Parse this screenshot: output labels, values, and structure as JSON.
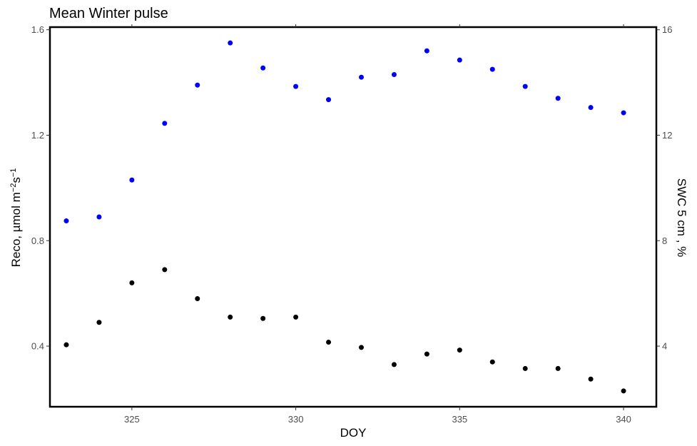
{
  "chart_data": {
    "type": "scatter",
    "title": "Mean Winter pulse",
    "xlabel": "DOY",
    "ylabel": {
      "main": "Reco, µmol m",
      "sup1": "−2",
      "mid": "s",
      "sup2": "−1"
    },
    "y2label": "SWC 5 cm , %",
    "xlim": [
      322.5,
      341.0
    ],
    "ylim": [
      0.17,
      1.61
    ],
    "y2lim": [
      1.7,
      16.1
    ],
    "x_ticks": [
      325,
      330,
      335,
      340
    ],
    "y_ticks": [
      0.4,
      0.8,
      1.2,
      1.6
    ],
    "y2_ticks": [
      4,
      8,
      12,
      16
    ],
    "x_tick_labels": [
      "325",
      "330",
      "335",
      "340"
    ],
    "y_tick_labels": [
      "0.4",
      "0.8",
      "1.2",
      "1.6"
    ],
    "y2_tick_labels": [
      "4",
      "8",
      "12",
      "16"
    ],
    "grid": false,
    "series": [
      {
        "axis": "left",
        "color": "#000000",
        "x": [
          323,
          324,
          325,
          326,
          327,
          328,
          329,
          330,
          331,
          332,
          333,
          334,
          335,
          336,
          337,
          338,
          339,
          340
        ],
        "y": [
          0.405,
          0.49,
          0.64,
          0.69,
          0.58,
          0.51,
          0.505,
          0.51,
          0.415,
          0.395,
          0.33,
          0.37,
          0.385,
          0.34,
          0.315,
          0.315,
          0.275,
          0.23
        ]
      },
      {
        "axis": "right",
        "color": "#0000ff",
        "x": [
          323,
          324,
          325,
          326,
          327,
          328,
          329,
          330,
          331,
          332,
          333,
          334,
          335,
          336,
          337,
          338,
          339,
          340
        ],
        "y": [
          8.75,
          8.9,
          10.3,
          12.45,
          13.9,
          15.5,
          14.55,
          13.85,
          13.35,
          14.2,
          14.3,
          15.2,
          14.85,
          14.5,
          13.85,
          13.4,
          13.05,
          12.85
        ]
      }
    ]
  }
}
